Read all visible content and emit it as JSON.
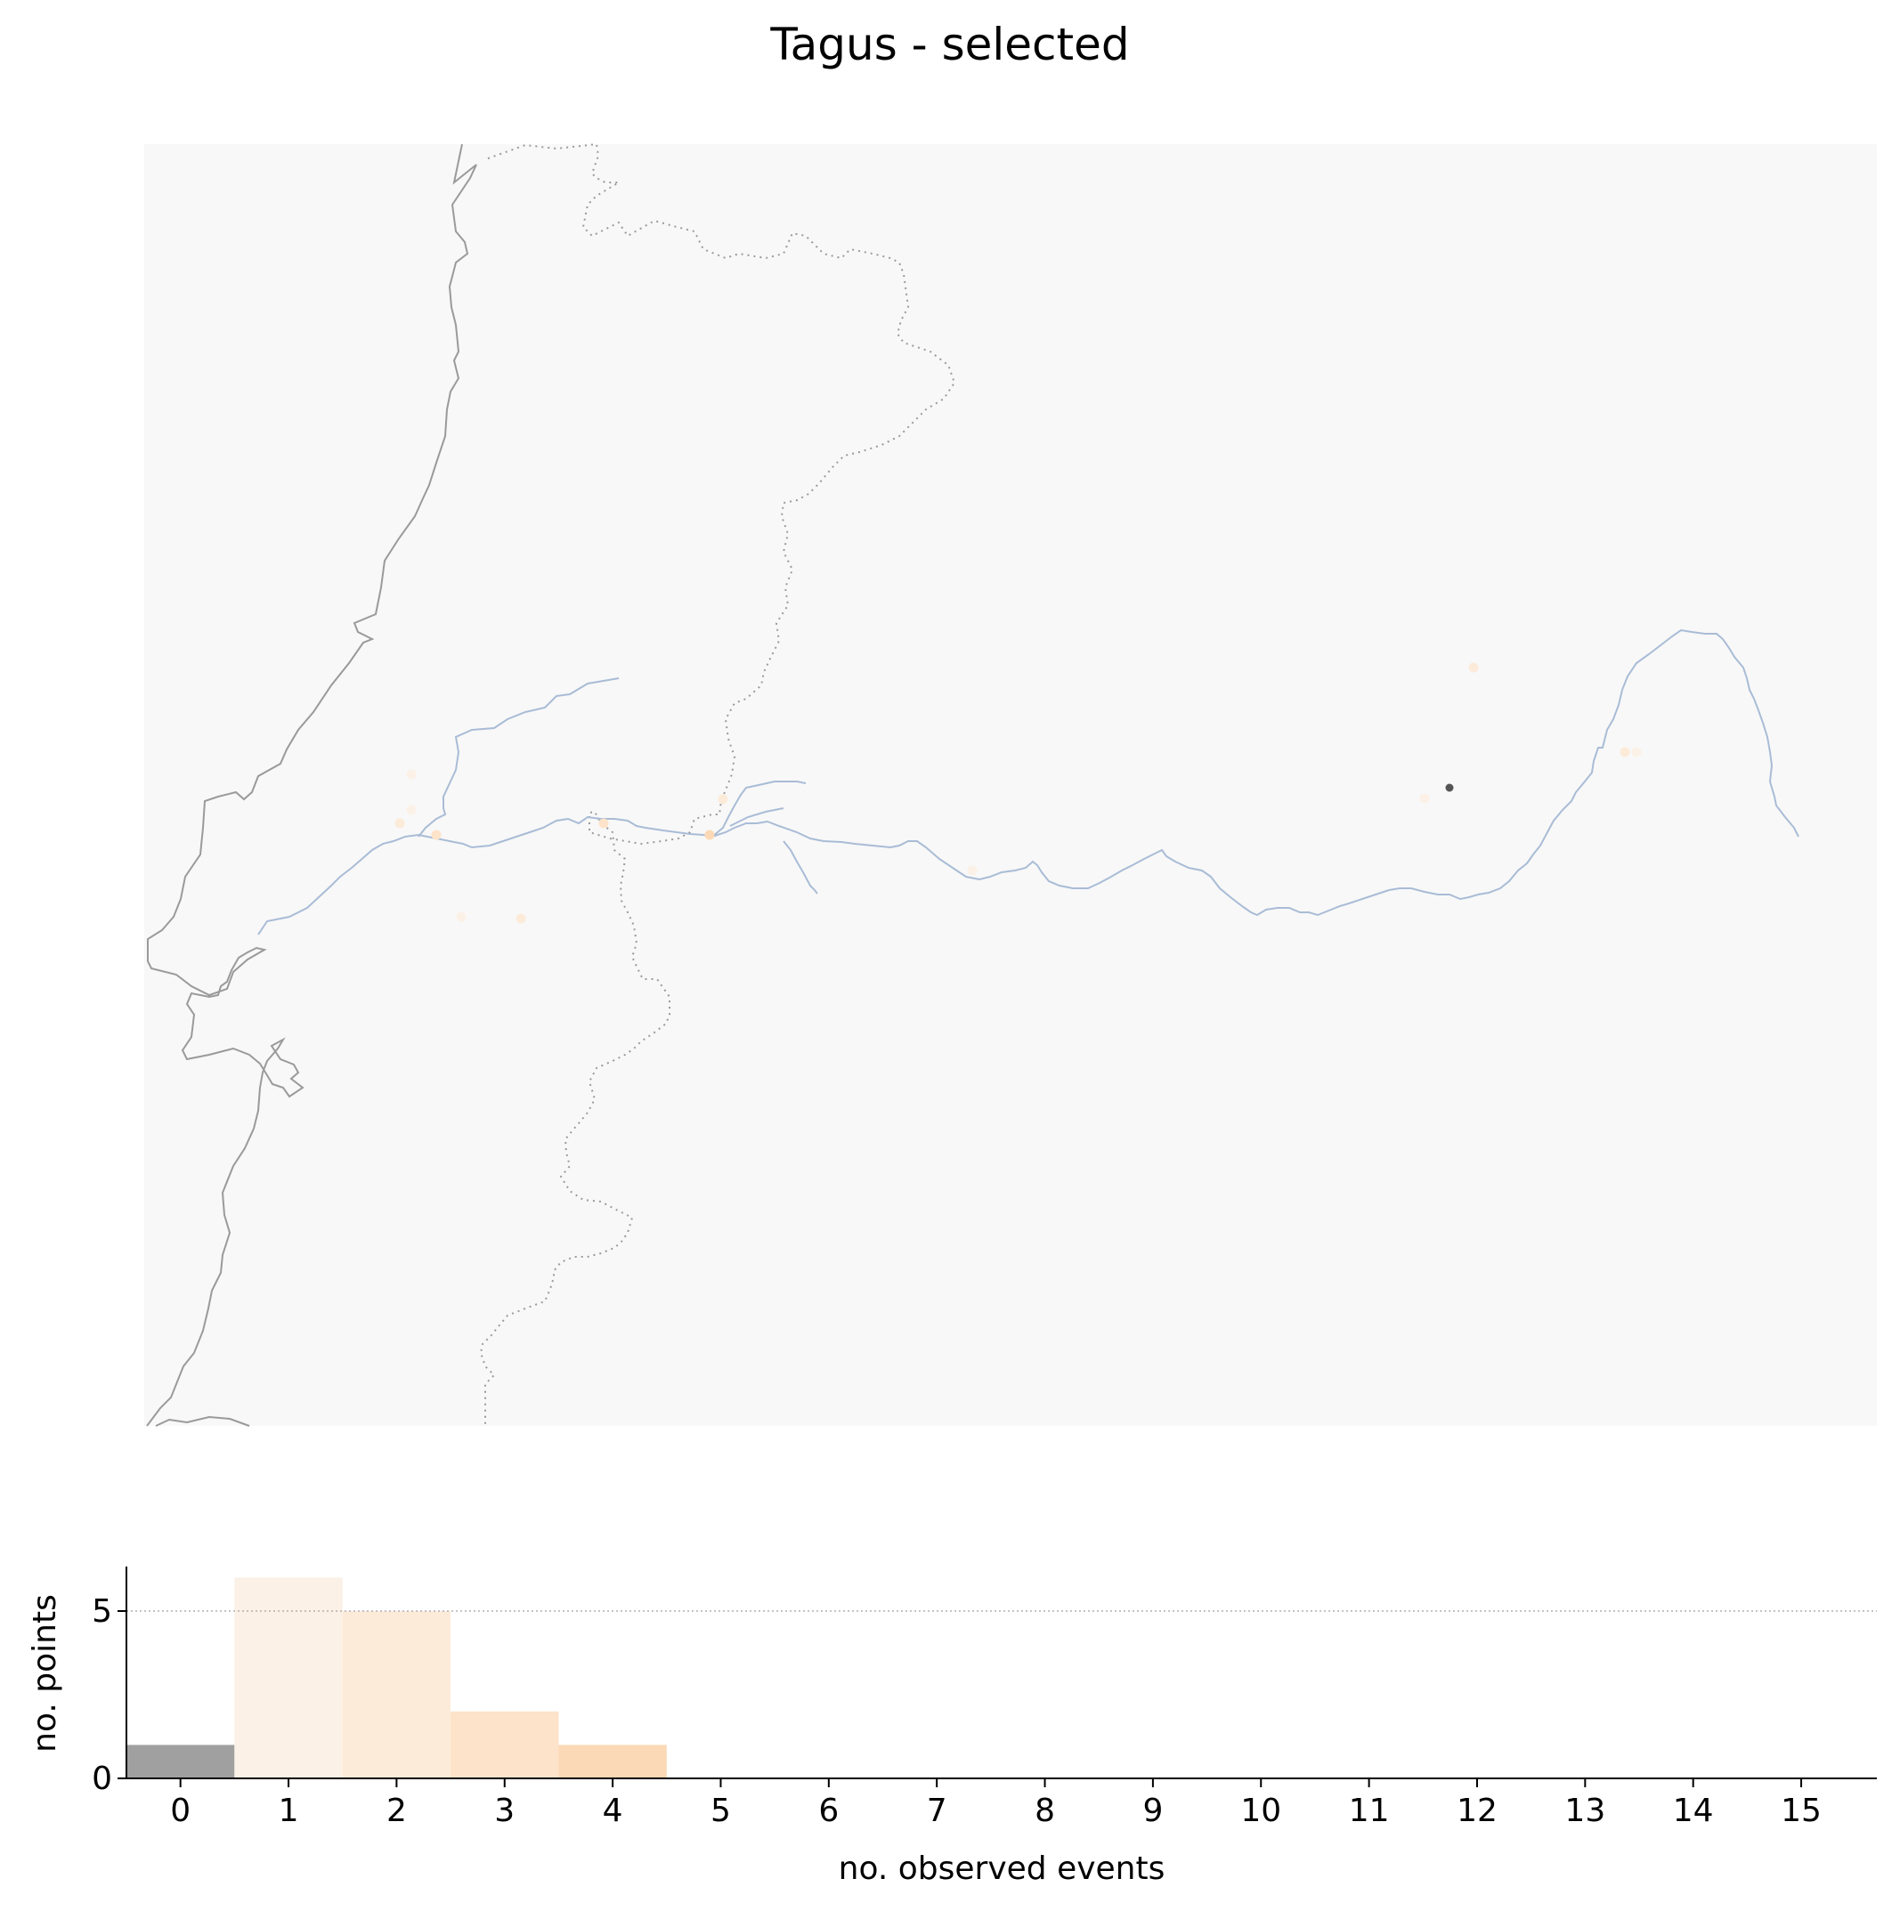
{
  "title": "Tagus - selected",
  "colors": {
    "map_background": "#f8f8f8",
    "coastline": "#9a9a9a",
    "border": "#9a9a9a",
    "river": "#a9bcd6",
    "point_zero": "#555555",
    "bar_zero": "#a0a0a0",
    "bar_1": "#fcf1e6",
    "bar_2": "#fdebd9",
    "bar_3": "#fde3c9",
    "bar_4": "#fcd9b6",
    "reference_line": "#b0b0b0"
  },
  "chart_data": [
    {
      "type": "scatter",
      "role": "map of observation points (no axes printed)",
      "title": "Tagus - selected",
      "points_by_event_count": [
        {
          "events": 0,
          "count": 1
        },
        {
          "events": 1,
          "count": 6
        },
        {
          "events": 2,
          "count": 5
        },
        {
          "events": 3,
          "count": 2
        },
        {
          "events": 4,
          "count": 1
        }
      ]
    },
    {
      "type": "bar",
      "categories": [
        "0",
        "1",
        "2",
        "3",
        "4",
        "5",
        "6",
        "7",
        "8",
        "9",
        "10",
        "11",
        "12",
        "13",
        "14",
        "15"
      ],
      "values": [
        1,
        6,
        5,
        2,
        1,
        0,
        0,
        0,
        0,
        0,
        0,
        0,
        0,
        0,
        0,
        0
      ],
      "xlabel": "no. observed events",
      "ylabel": "no. points",
      "yticks": [
        "0",
        "5"
      ],
      "ylim": [
        0,
        6.3
      ],
      "reference_line": {
        "y": 5,
        "style": "dotted"
      },
      "grid": false
    }
  ]
}
